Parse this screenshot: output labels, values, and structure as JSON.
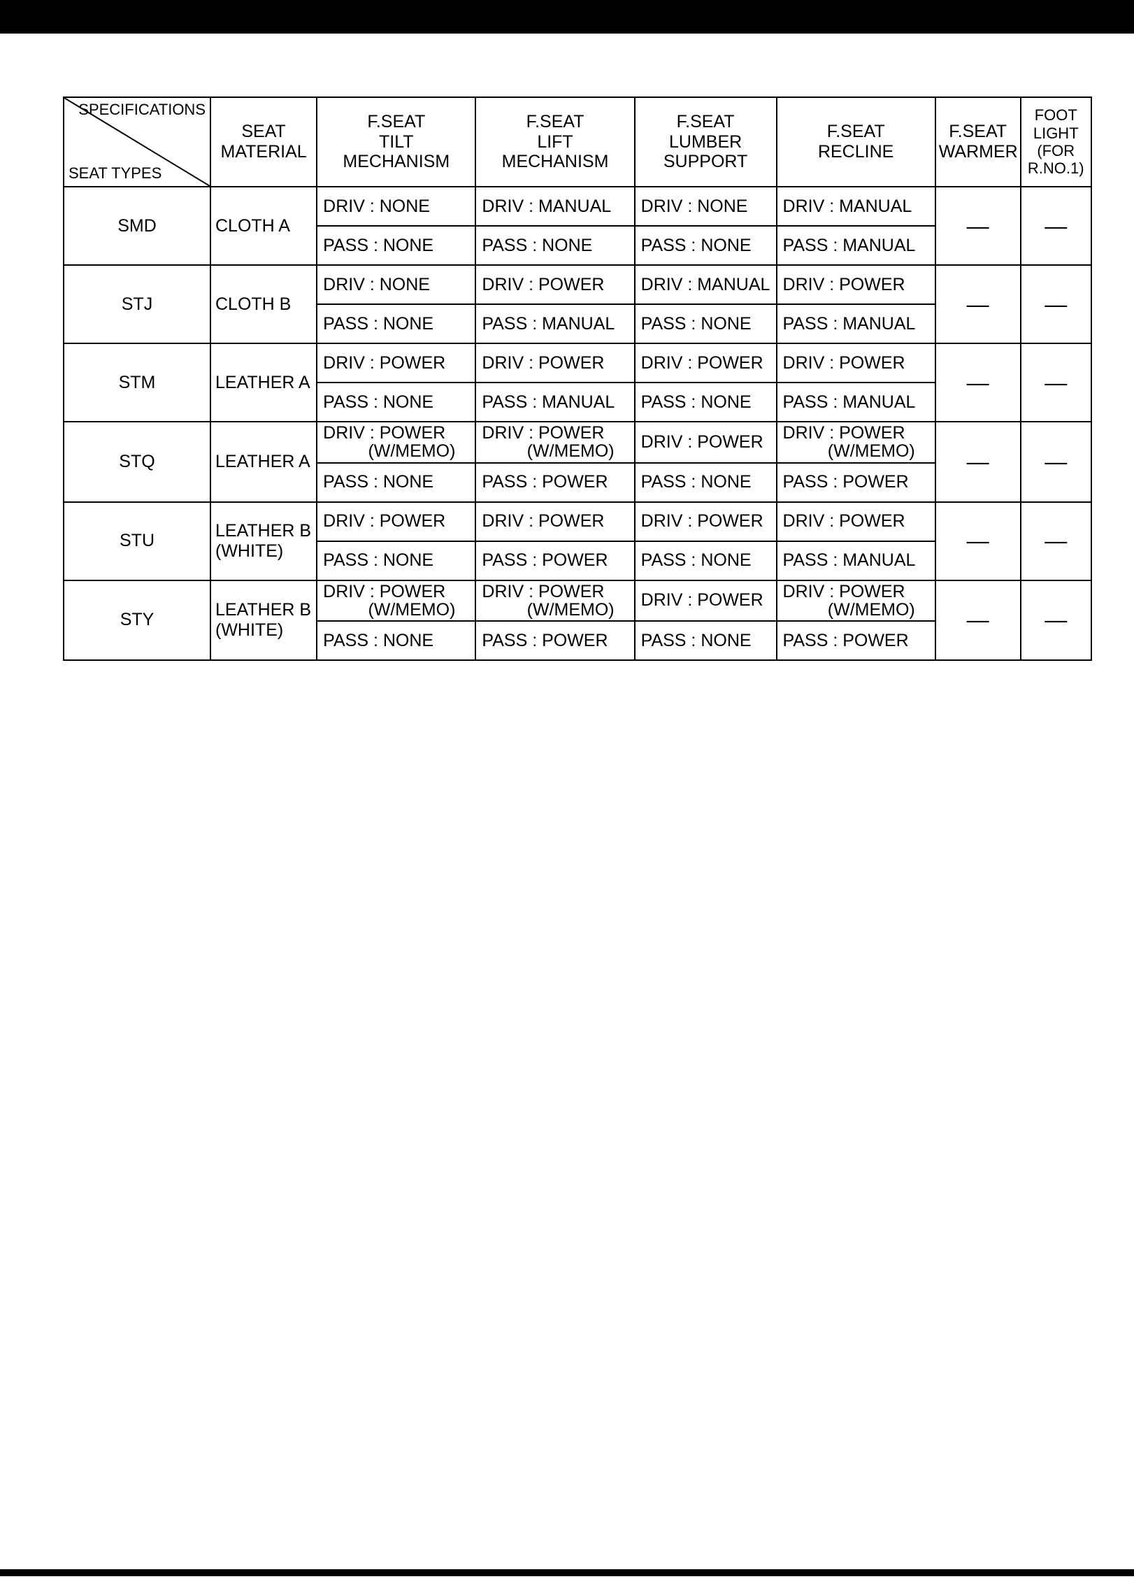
{
  "header": {
    "diag_top": "SPECIFICATIONS",
    "diag_bottom": "SEAT TYPES",
    "columns": [
      "SEAT\nMATERIAL",
      "F.SEAT\nTILT\nMECHANISM",
      "F.SEAT\nLIFT\nMECHANISM",
      "F.SEAT\nLUMBER\nSUPPORT",
      "F.SEAT\nRECLINE",
      "F.SEAT\nWARMER",
      "FOOT\nLIGHT\n(FOR\nR.NO.1)"
    ]
  },
  "dash": "—",
  "rows": [
    {
      "type": "SMD",
      "material": "CLOTH A",
      "mat_two_line": false,
      "driv": [
        "DRIV : NONE",
        "DRIV : MANUAL",
        "DRIV : NONE",
        "DRIV : MANUAL"
      ],
      "driv_memo": [
        false,
        false,
        false,
        false
      ],
      "pass": [
        "PASS : NONE",
        "PASS : NONE",
        "PASS : NONE",
        "PASS : MANUAL"
      ]
    },
    {
      "type": "STJ",
      "material": "CLOTH B",
      "mat_two_line": false,
      "driv": [
        "DRIV : NONE",
        "DRIV : POWER",
        "DRIV : MANUAL",
        "DRIV : POWER"
      ],
      "driv_memo": [
        false,
        false,
        false,
        false
      ],
      "pass": [
        "PASS : NONE",
        "PASS : MANUAL",
        "PASS : NONE",
        "PASS : MANUAL"
      ]
    },
    {
      "type": "STM",
      "material": "LEATHER A",
      "mat_two_line": false,
      "driv": [
        "DRIV : POWER",
        "DRIV : POWER",
        "DRIV : POWER",
        "DRIV : POWER"
      ],
      "driv_memo": [
        false,
        false,
        false,
        false
      ],
      "pass": [
        "PASS : NONE",
        "PASS : MANUAL",
        "PASS : NONE",
        "PASS : MANUAL"
      ]
    },
    {
      "type": "STQ",
      "material": "LEATHER A",
      "mat_two_line": false,
      "driv": [
        "DRIV : POWER",
        "DRIV : POWER",
        "DRIV : POWER",
        "DRIV : POWER"
      ],
      "driv_memo": [
        true,
        true,
        false,
        true
      ],
      "pass": [
        "PASS : NONE",
        "PASS : POWER",
        "PASS : NONE",
        "PASS : POWER"
      ]
    },
    {
      "type": "STU",
      "material": "LEATHER B\n(WHITE)",
      "mat_two_line": true,
      "driv": [
        "DRIV : POWER",
        "DRIV : POWER",
        "DRIV : POWER",
        "DRIV : POWER"
      ],
      "driv_memo": [
        false,
        false,
        false,
        false
      ],
      "pass": [
        "PASS : NONE",
        "PASS : POWER",
        "PASS : NONE",
        "PASS : MANUAL"
      ]
    },
    {
      "type": "STY",
      "material": "LEATHER B\n(WHITE)",
      "mat_two_line": true,
      "driv": [
        "DRIV : POWER",
        "DRIV : POWER",
        "DRIV : POWER",
        "DRIV : POWER"
      ],
      "driv_memo": [
        true,
        true,
        false,
        true
      ],
      "pass": [
        "PASS : NONE",
        "PASS : POWER",
        "PASS : NONE",
        "PASS : POWER"
      ]
    }
  ],
  "memo_suffix": "(W/MEMO)"
}
